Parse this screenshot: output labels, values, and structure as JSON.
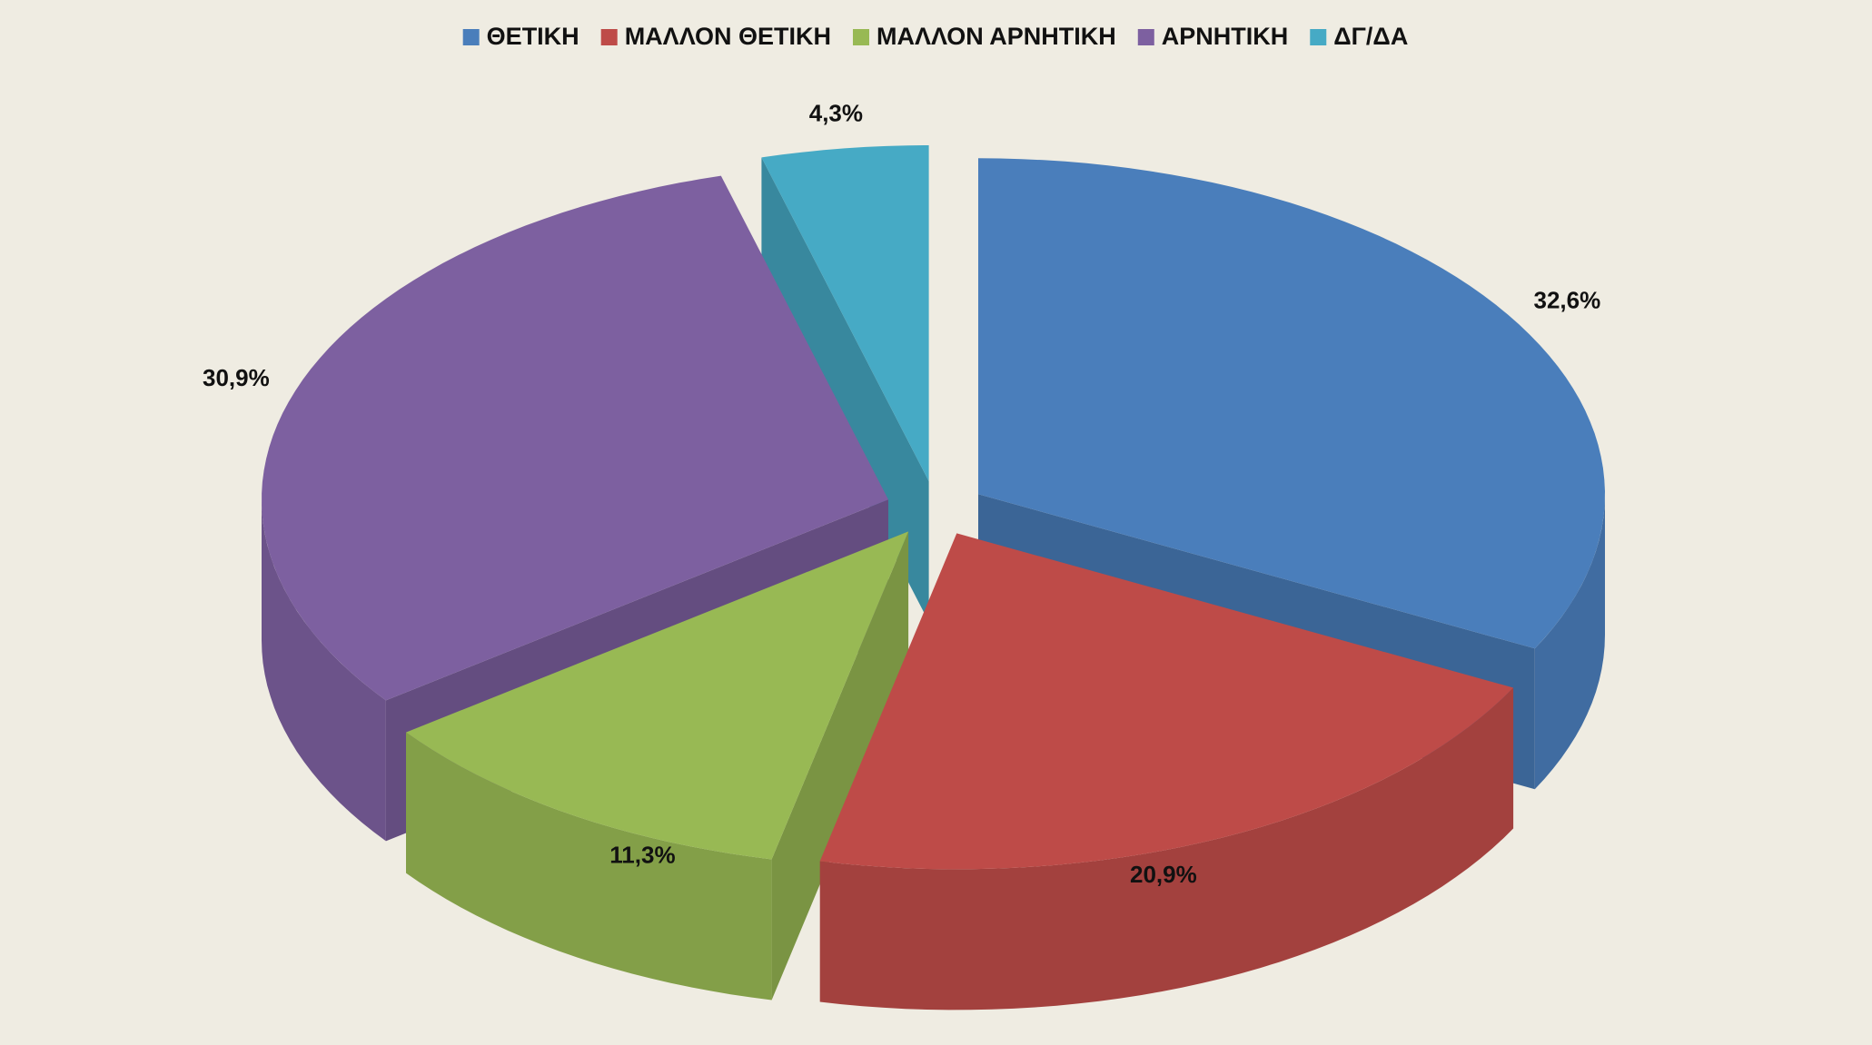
{
  "chart_data": {
    "type": "pie",
    "categories": [
      "ΘΕΤΙΚΗ",
      "ΜΑΛΛΟΝ ΘΕΤΙΚΗ",
      "ΜΑΛΛΟΝ ΑΡΝΗΤΙΚΗ",
      "ΑΡΝΗΤΙΚΗ",
      "ΔΓ/ΔΑ"
    ],
    "values": [
      32.6,
      20.9,
      11.3,
      30.9,
      4.3
    ],
    "value_labels": [
      "32,6%",
      "20,9%",
      "11,3%",
      "30,9%",
      "4,3%"
    ],
    "colors": [
      "#4a7ebb",
      "#be4b48",
      "#98b954",
      "#7d60a0",
      "#46aac5"
    ],
    "legend": "top"
  }
}
